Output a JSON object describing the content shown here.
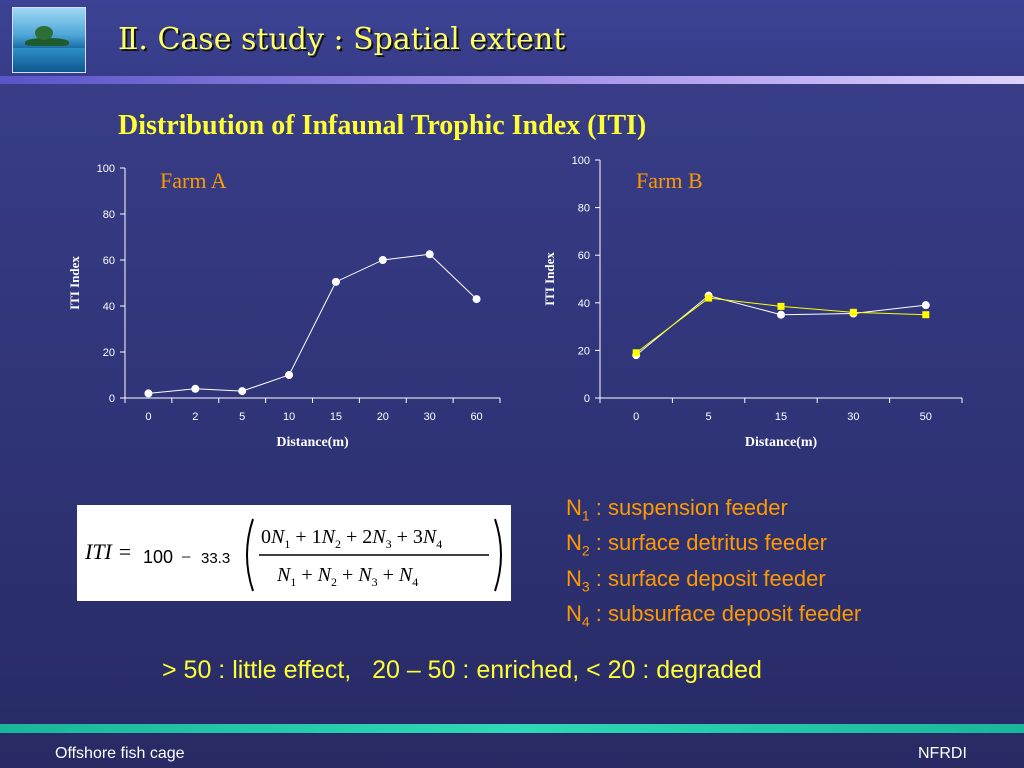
{
  "slide": {
    "title": "Ⅱ. Case study : Spatial extent",
    "subtitle": "Distribution of Infaunal Trophic Index (ITI)",
    "formula": {
      "lhs": "ITI =",
      "constant": "100",
      "coefficient": "33.3"
    },
    "legend": [
      {
        "symbol": "N",
        "index": "1",
        "text": " : suspension feeder"
      },
      {
        "symbol": "N",
        "index": "2",
        "text": " : surface detritus feeder"
      },
      {
        "symbol": "N",
        "index": "3",
        "text": " : surface deposit feeder"
      },
      {
        "symbol": "N",
        "index": "4",
        "text": " : subsurface deposit feeder"
      }
    ],
    "criteria": "> 50 : little effect,   20 – 50 : enriched, < 20 : degraded",
    "footer": {
      "left": "Offshore fish cage",
      "right": "NFRDI"
    }
  },
  "colors": {
    "title": "#ffff66",
    "subtitle": "#ffff33",
    "farm_label": "#ff9900",
    "legend": "#ff9900",
    "series_white": "#ffffff",
    "series_yellow": "#ffff00"
  },
  "chart_data": [
    {
      "type": "line",
      "annotation": "Farm A",
      "xlabel": "Distance(m)",
      "ylabel": "ITI Index",
      "categories": [
        "0",
        "2",
        "5",
        "10",
        "15",
        "20",
        "30",
        "60"
      ],
      "ylim": [
        0,
        100
      ],
      "yticks": [
        0,
        20,
        40,
        60,
        80,
        100
      ],
      "grid": false,
      "series": [
        {
          "color": "#ffffff",
          "marker": "circle",
          "values": [
            2,
            4,
            3,
            10,
            50.5,
            60,
            62.5,
            43
          ]
        }
      ]
    },
    {
      "type": "line",
      "annotation": "Farm B",
      "xlabel": "Distance(m)",
      "ylabel": "ITI Index",
      "categories": [
        "0",
        "5",
        "15",
        "30",
        "50"
      ],
      "ylim": [
        0,
        100
      ],
      "yticks": [
        0,
        20,
        40,
        60,
        80,
        100
      ],
      "grid": false,
      "series": [
        {
          "color": "#ffffff",
          "marker": "circle",
          "values": [
            18,
            43,
            35,
            35.5,
            39
          ]
        },
        {
          "color": "#ffff00",
          "marker": "square",
          "values": [
            19,
            42,
            38.5,
            36,
            35
          ]
        }
      ]
    }
  ]
}
